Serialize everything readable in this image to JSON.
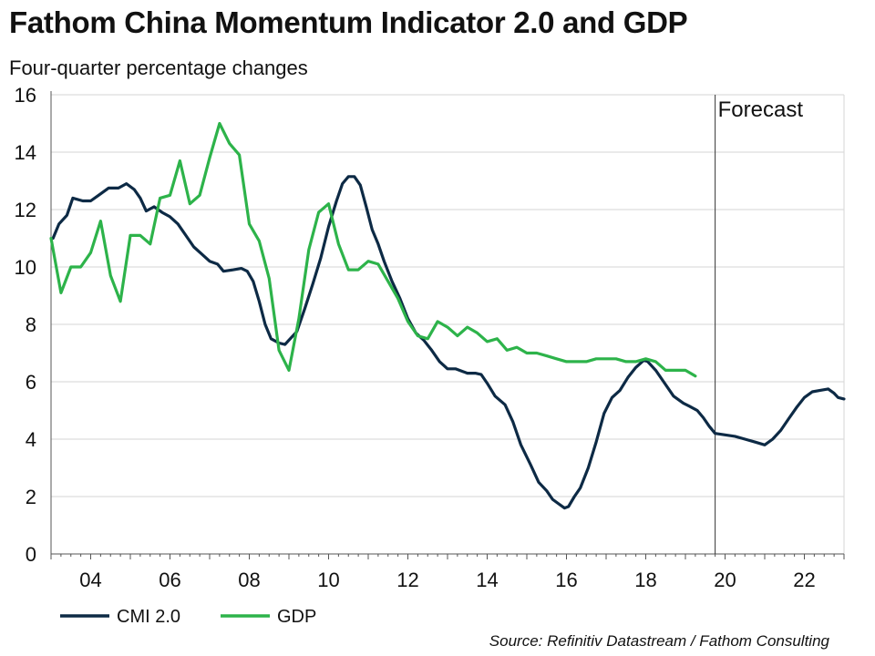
{
  "header": {
    "title": "Fathom China Momentum Indicator 2.0 and GDP",
    "subtitle": "Four-quarter percentage changes"
  },
  "footer": {
    "source": "Source: Refinitiv Datastream / Fathom Consulting"
  },
  "chart_data": {
    "type": "line",
    "title": "Fathom China Momentum Indicator 2.0 and GDP",
    "subtitle": "Four-quarter percentage changes",
    "xlabel": "",
    "ylabel": "",
    "xlim": [
      2003.0,
      2023.0
    ],
    "ylim": [
      0,
      16
    ],
    "yticks": [
      0,
      2,
      4,
      6,
      8,
      10,
      12,
      14,
      16
    ],
    "xticks": [
      {
        "value": 2004,
        "label": "04"
      },
      {
        "value": 2006,
        "label": "06"
      },
      {
        "value": 2008,
        "label": "08"
      },
      {
        "value": 2010,
        "label": "10"
      },
      {
        "value": 2012,
        "label": "12"
      },
      {
        "value": 2014,
        "label": "14"
      },
      {
        "value": 2016,
        "label": "16"
      },
      {
        "value": 2018,
        "label": "18"
      },
      {
        "value": 2020,
        "label": "20"
      },
      {
        "value": 2022,
        "label": "22"
      }
    ],
    "grid": true,
    "legend_position": "bottom-left",
    "annotation": {
      "label": "Forecast",
      "x": 2019.75
    },
    "series": [
      {
        "name": "CMI 2.0",
        "color": "#0d2a45",
        "points": [
          [
            2003.05,
            11.0
          ],
          [
            2003.2,
            11.5
          ],
          [
            2003.4,
            11.8
          ],
          [
            2003.55,
            12.4
          ],
          [
            2003.8,
            12.3
          ],
          [
            2004.0,
            12.3
          ],
          [
            2004.2,
            12.5
          ],
          [
            2004.45,
            12.75
          ],
          [
            2004.7,
            12.75
          ],
          [
            2004.9,
            12.9
          ],
          [
            2005.1,
            12.7
          ],
          [
            2005.25,
            12.4
          ],
          [
            2005.4,
            11.95
          ],
          [
            2005.6,
            12.1
          ],
          [
            2005.8,
            11.9
          ],
          [
            2006.0,
            11.75
          ],
          [
            2006.2,
            11.5
          ],
          [
            2006.4,
            11.1
          ],
          [
            2006.6,
            10.7
          ],
          [
            2006.8,
            10.45
          ],
          [
            2007.0,
            10.2
          ],
          [
            2007.2,
            10.1
          ],
          [
            2007.35,
            9.85
          ],
          [
            2007.6,
            9.9
          ],
          [
            2007.8,
            9.95
          ],
          [
            2007.95,
            9.85
          ],
          [
            2008.1,
            9.5
          ],
          [
            2008.25,
            8.8
          ],
          [
            2008.4,
            8.0
          ],
          [
            2008.55,
            7.5
          ],
          [
            2008.75,
            7.35
          ],
          [
            2008.9,
            7.3
          ],
          [
            2009.0,
            7.45
          ],
          [
            2009.2,
            7.75
          ],
          [
            2009.4,
            8.55
          ],
          [
            2009.6,
            9.4
          ],
          [
            2009.8,
            10.3
          ],
          [
            2010.0,
            11.4
          ],
          [
            2010.2,
            12.3
          ],
          [
            2010.35,
            12.9
          ],
          [
            2010.5,
            13.15
          ],
          [
            2010.65,
            13.15
          ],
          [
            2010.8,
            12.85
          ],
          [
            2010.95,
            12.1
          ],
          [
            2011.1,
            11.3
          ],
          [
            2011.25,
            10.8
          ],
          [
            2011.4,
            10.2
          ],
          [
            2011.6,
            9.5
          ],
          [
            2011.8,
            8.9
          ],
          [
            2012.0,
            8.2
          ],
          [
            2012.2,
            7.7
          ],
          [
            2012.4,
            7.45
          ],
          [
            2012.6,
            7.1
          ],
          [
            2012.8,
            6.7
          ],
          [
            2013.0,
            6.45
          ],
          [
            2013.2,
            6.45
          ],
          [
            2013.4,
            6.35
          ],
          [
            2013.5,
            6.3
          ],
          [
            2013.7,
            6.3
          ],
          [
            2013.85,
            6.25
          ],
          [
            2014.0,
            5.95
          ],
          [
            2014.2,
            5.5
          ],
          [
            2014.45,
            5.2
          ],
          [
            2014.65,
            4.6
          ],
          [
            2014.85,
            3.8
          ],
          [
            2015.1,
            3.1
          ],
          [
            2015.3,
            2.5
          ],
          [
            2015.5,
            2.2
          ],
          [
            2015.65,
            1.9
          ],
          [
            2015.8,
            1.75
          ],
          [
            2015.95,
            1.6
          ],
          [
            2016.05,
            1.65
          ],
          [
            2016.2,
            2.0
          ],
          [
            2016.35,
            2.3
          ],
          [
            2016.55,
            3.0
          ],
          [
            2016.75,
            3.9
          ],
          [
            2016.95,
            4.9
          ],
          [
            2017.15,
            5.45
          ],
          [
            2017.35,
            5.7
          ],
          [
            2017.55,
            6.15
          ],
          [
            2017.75,
            6.5
          ],
          [
            2017.95,
            6.75
          ],
          [
            2018.05,
            6.7
          ],
          [
            2018.25,
            6.4
          ],
          [
            2018.45,
            6.0
          ],
          [
            2018.7,
            5.5
          ],
          [
            2018.95,
            5.25
          ],
          [
            2019.1,
            5.15
          ],
          [
            2019.3,
            5.0
          ],
          [
            2019.45,
            4.75
          ],
          [
            2019.6,
            4.45
          ],
          [
            2019.75,
            4.2
          ],
          [
            2020.0,
            4.15
          ],
          [
            2020.25,
            4.1
          ],
          [
            2020.5,
            4.0
          ],
          [
            2020.75,
            3.9
          ],
          [
            2021.0,
            3.8
          ],
          [
            2021.2,
            4.0
          ],
          [
            2021.4,
            4.3
          ],
          [
            2021.6,
            4.7
          ],
          [
            2021.8,
            5.1
          ],
          [
            2022.0,
            5.45
          ],
          [
            2022.2,
            5.65
          ],
          [
            2022.4,
            5.7
          ],
          [
            2022.6,
            5.75
          ],
          [
            2022.75,
            5.6
          ],
          [
            2022.85,
            5.45
          ],
          [
            2023.0,
            5.4
          ]
        ]
      },
      {
        "name": "GDP",
        "color": "#2db34a",
        "points": [
          [
            2003.0,
            11.0
          ],
          [
            2003.25,
            9.1
          ],
          [
            2003.5,
            10.0
          ],
          [
            2003.75,
            10.0
          ],
          [
            2004.0,
            10.5
          ],
          [
            2004.25,
            11.6
          ],
          [
            2004.5,
            9.7
          ],
          [
            2004.75,
            8.8
          ],
          [
            2005.0,
            11.1
          ],
          [
            2005.25,
            11.1
          ],
          [
            2005.5,
            10.8
          ],
          [
            2005.75,
            12.4
          ],
          [
            2006.0,
            12.5
          ],
          [
            2006.25,
            13.7
          ],
          [
            2006.5,
            12.2
          ],
          [
            2006.75,
            12.5
          ],
          [
            2007.0,
            13.8
          ],
          [
            2007.25,
            15.0
          ],
          [
            2007.5,
            14.3
          ],
          [
            2007.75,
            13.9
          ],
          [
            2008.0,
            11.5
          ],
          [
            2008.25,
            10.9
          ],
          [
            2008.5,
            9.6
          ],
          [
            2008.75,
            7.1
          ],
          [
            2009.0,
            6.4
          ],
          [
            2009.25,
            8.2
          ],
          [
            2009.5,
            10.6
          ],
          [
            2009.75,
            11.9
          ],
          [
            2010.0,
            12.2
          ],
          [
            2010.25,
            10.8
          ],
          [
            2010.5,
            9.9
          ],
          [
            2010.75,
            9.9
          ],
          [
            2011.0,
            10.2
          ],
          [
            2011.25,
            10.1
          ],
          [
            2011.5,
            9.5
          ],
          [
            2011.75,
            8.9
          ],
          [
            2012.0,
            8.1
          ],
          [
            2012.25,
            7.6
          ],
          [
            2012.5,
            7.5
          ],
          [
            2012.75,
            8.1
          ],
          [
            2013.0,
            7.9
          ],
          [
            2013.25,
            7.6
          ],
          [
            2013.5,
            7.9
          ],
          [
            2013.75,
            7.7
          ],
          [
            2014.0,
            7.4
          ],
          [
            2014.25,
            7.5
          ],
          [
            2014.5,
            7.1
          ],
          [
            2014.75,
            7.2
          ],
          [
            2015.0,
            7.0
          ],
          [
            2015.25,
            7.0
          ],
          [
            2015.5,
            6.9
          ],
          [
            2015.75,
            6.8
          ],
          [
            2016.0,
            6.7
          ],
          [
            2016.25,
            6.7
          ],
          [
            2016.5,
            6.7
          ],
          [
            2016.75,
            6.8
          ],
          [
            2017.0,
            6.8
          ],
          [
            2017.25,
            6.8
          ],
          [
            2017.5,
            6.7
          ],
          [
            2017.75,
            6.7
          ],
          [
            2018.0,
            6.8
          ],
          [
            2018.25,
            6.7
          ],
          [
            2018.5,
            6.4
          ],
          [
            2018.75,
            6.4
          ],
          [
            2019.0,
            6.4
          ],
          [
            2019.25,
            6.2
          ]
        ]
      }
    ]
  }
}
